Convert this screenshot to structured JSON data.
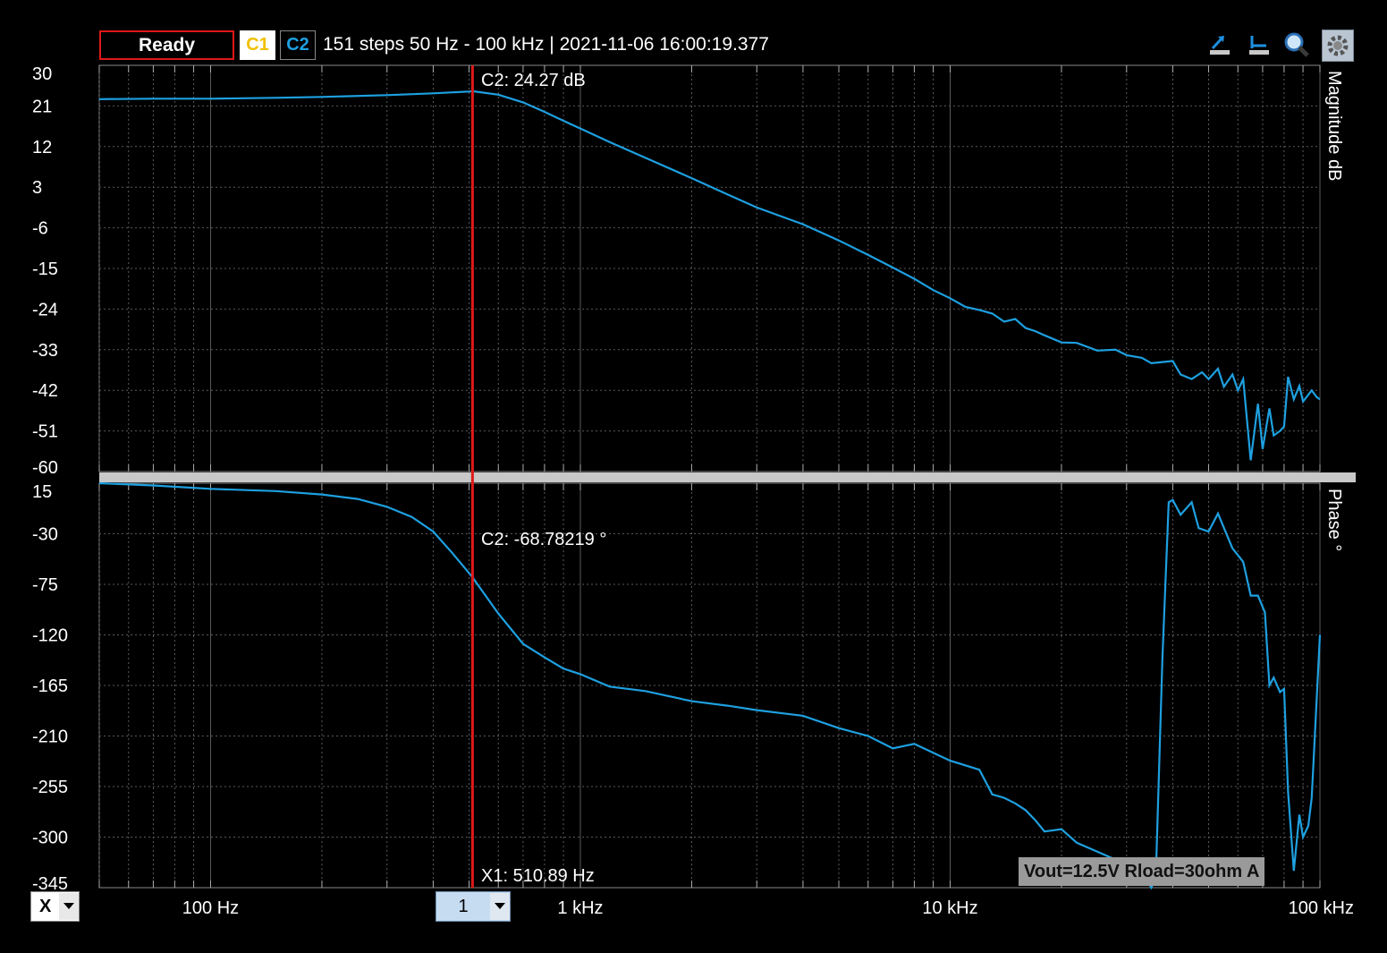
{
  "header": {
    "status": "Ready",
    "channel1": "C1",
    "channel2": "C2",
    "info": "151 steps  50 Hz - 100 kHz | 2021-11-06 16:00:19.377"
  },
  "toolbar": {
    "icons": [
      "cursor-to-max-icon",
      "cursor-to-min-icon",
      "zoom-icon",
      "settings-gear-icon"
    ]
  },
  "colors": {
    "trace": "#1ea0e0",
    "cursor": "#e01818",
    "c1": "#f0c000",
    "c2": "#1ea0e0",
    "grid": "#5a5a5a"
  },
  "controls": {
    "x_selector": "X",
    "cursor_index": "1"
  },
  "annotation": "Vout=12.5V Rload=30ohm A",
  "chart_data": [
    {
      "type": "line",
      "ylabel": "Magnitude  dB",
      "xscale": "log",
      "xlim": [
        50,
        100000
      ],
      "ylim": [
        -60,
        30
      ],
      "yticks": [
        30,
        21,
        12,
        3,
        -6,
        -15,
        -24,
        -33,
        -42,
        -51,
        -60
      ],
      "xticks": [
        {
          "v": 100,
          "label": "100 Hz"
        },
        {
          "v": 1000,
          "label": "1 kHz"
        },
        {
          "v": 10000,
          "label": "10 kHz"
        },
        {
          "v": 100000,
          "label": "100 kHz"
        }
      ],
      "cursor_label": "C2: 24.27 dB",
      "series": [
        {
          "x": [
            50,
            70,
            100,
            150,
            200,
            300,
            400,
            500,
            510.89,
            600,
            700,
            800,
            900,
            1000,
            1200,
            1500,
            2000,
            2500,
            3000,
            4000,
            5000,
            6000,
            7000,
            8000,
            9000,
            10000,
            11000,
            12000,
            13000,
            14000,
            15000,
            16000,
            17000,
            18000,
            20000,
            22000,
            25000,
            28000,
            30000,
            33000,
            35000,
            37000,
            40000,
            42000,
            45000,
            48000,
            50000,
            53000,
            55000,
            58000,
            60000,
            62000,
            65000,
            68000,
            70000,
            73000,
            75000,
            78000,
            80000,
            82000,
            85000,
            88000,
            90000,
            93000,
            95000,
            98000,
            100000
          ],
          "values": [
            22.5,
            22.6,
            22.6,
            22.8,
            23.0,
            23.4,
            23.8,
            24.2,
            24.27,
            23.5,
            21.8,
            19.7,
            17.7,
            16.0,
            13.0,
            9.5,
            5.0,
            1.4,
            -1.5,
            -5.2,
            -8.8,
            -12.0,
            -14.8,
            -17.3,
            -19.8,
            -21.6,
            -23.5,
            -24.2,
            -25.0,
            -26.8,
            -26.2,
            -28.2,
            -28.9,
            -29.8,
            -31.4,
            -31.5,
            -33.2,
            -33.0,
            -34.2,
            -34.8,
            -36.0,
            -35.8,
            -35.5,
            -38.5,
            -39.5,
            -38.0,
            -39.5,
            -37.2,
            -41.2,
            -38.5,
            -42.0,
            -39.5,
            -57.5,
            -45.0,
            -55.0,
            -46.0,
            -52.0,
            -51.0,
            -50.0,
            -39.0,
            -44.0,
            -41.0,
            -44.5,
            -43.0,
            -42.0,
            -43.5,
            -44.0
          ]
        }
      ]
    },
    {
      "type": "line",
      "ylabel": "Phase  °",
      "xscale": "log",
      "xlim": [
        50,
        100000
      ],
      "ylim": [
        -345,
        15
      ],
      "yticks": [
        15,
        -30,
        -75,
        -120,
        -165,
        -210,
        -255,
        -300,
        -345
      ],
      "xticks": [
        {
          "v": 100,
          "label": "100 Hz"
        },
        {
          "v": 1000,
          "label": "1 kHz"
        },
        {
          "v": 10000,
          "label": "10 kHz"
        },
        {
          "v": 100000,
          "label": "100 kHz"
        }
      ],
      "cursor_label": "C2: -68.78219 °",
      "cursor_x_label": "X1: 510.89 Hz",
      "cursor_x": 510.89,
      "series": [
        {
          "x": [
            50,
            70,
            100,
            150,
            200,
            250,
            300,
            350,
            400,
            450,
            500,
            510.89,
            600,
            700,
            800,
            900,
            1000,
            1200,
            1500,
            2000,
            2500,
            3000,
            4000,
            5000,
            6000,
            7000,
            8000,
            9000,
            10000,
            12000,
            13000,
            14000,
            15000,
            16000,
            17000,
            18000,
            20000,
            22000,
            25000,
            28000,
            30000,
            33000,
            35000,
            36000,
            37500,
            39000,
            40000,
            42000,
            45000,
            47000,
            50000,
            53000,
            58000,
            62000,
            65000,
            68000,
            71000,
            73000,
            75000,
            78000,
            80000,
            82000,
            85000,
            88000,
            90000,
            93000,
            95000,
            100000
          ],
          "values": [
            15,
            13,
            10,
            8,
            5,
            1,
            -6,
            -15,
            -28,
            -47,
            -65,
            -68.78,
            -101,
            -128,
            -140,
            -150,
            -155,
            -166,
            -170,
            -179,
            -183,
            -187,
            -192,
            -203,
            -210,
            -221,
            -217,
            -225,
            -232,
            -240,
            -262,
            -265,
            -270,
            -276,
            -285,
            -295,
            -293,
            -305,
            -313,
            -320,
            -328,
            -332,
            -345,
            -335,
            -140,
            -2,
            0,
            -13,
            -2,
            -25,
            -28,
            -12,
            -43,
            -55,
            -85,
            -85,
            -100,
            -165,
            -158,
            -171,
            -168,
            -260,
            -330,
            -280,
            -300,
            -290,
            -265,
            -120
          ]
        }
      ]
    }
  ]
}
